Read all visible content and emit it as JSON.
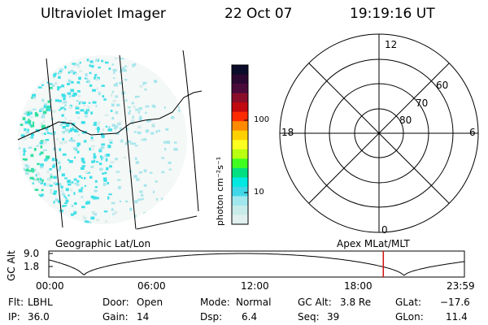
{
  "header": {
    "instrument": "Ultraviolet Imager",
    "date": "22 Oct 07",
    "time": "19:19:16 UT"
  },
  "colorbar": {
    "unit_label": "photon cm⁻²s⁻¹",
    "ticks": [
      "100",
      "10"
    ],
    "colors": [
      "#0b0b2a",
      "#2a0830",
      "#4a0a3a",
      "#8a0d2a",
      "#c00a10",
      "#ff2a00",
      "#ff8a00",
      "#ffd000",
      "#ffff20",
      "#b8ff10",
      "#40ff20",
      "#00e080",
      "#00e8e0",
      "#40d8e8",
      "#a0e8ee",
      "#c8ecea",
      "#e0f0ee"
    ]
  },
  "polar_plot": {
    "mlt_labels": {
      "top": "12",
      "left": "18",
      "right": "6",
      "bottom": "0"
    },
    "lat_labels": [
      "60",
      "70",
      "80"
    ]
  },
  "timeline": {
    "left_caption": "Geographic Lat/Lon",
    "right_caption": "Apex MLat/MLT",
    "y_axis_label": "GC Alt",
    "y_ticks": [
      "9.0",
      "1.8"
    ],
    "x_ticks": [
      "00:00",
      "06:00",
      "12:00",
      "18:00",
      "23:59"
    ],
    "current_time_marker": "19:19",
    "marker_color": "#d01010"
  },
  "status": [
    {
      "key": "Flt:",
      "value": "LBHL"
    },
    {
      "key": "IP:",
      "value": "36.0"
    },
    {
      "key": "Door:",
      "value": "Open"
    },
    {
      "key": "Gain:",
      "value": "14"
    },
    {
      "key": "Mode:",
      "value": "Normal"
    },
    {
      "key": "Dsp:",
      "value": "6.4"
    },
    {
      "key": "GC Alt:",
      "value": "3.8 Re"
    },
    {
      "key": "Seq:",
      "value": "39"
    },
    {
      "key": "GLat:",
      "value": "−17.6"
    },
    {
      "key": "GLon:",
      "value": "11.4"
    }
  ]
}
